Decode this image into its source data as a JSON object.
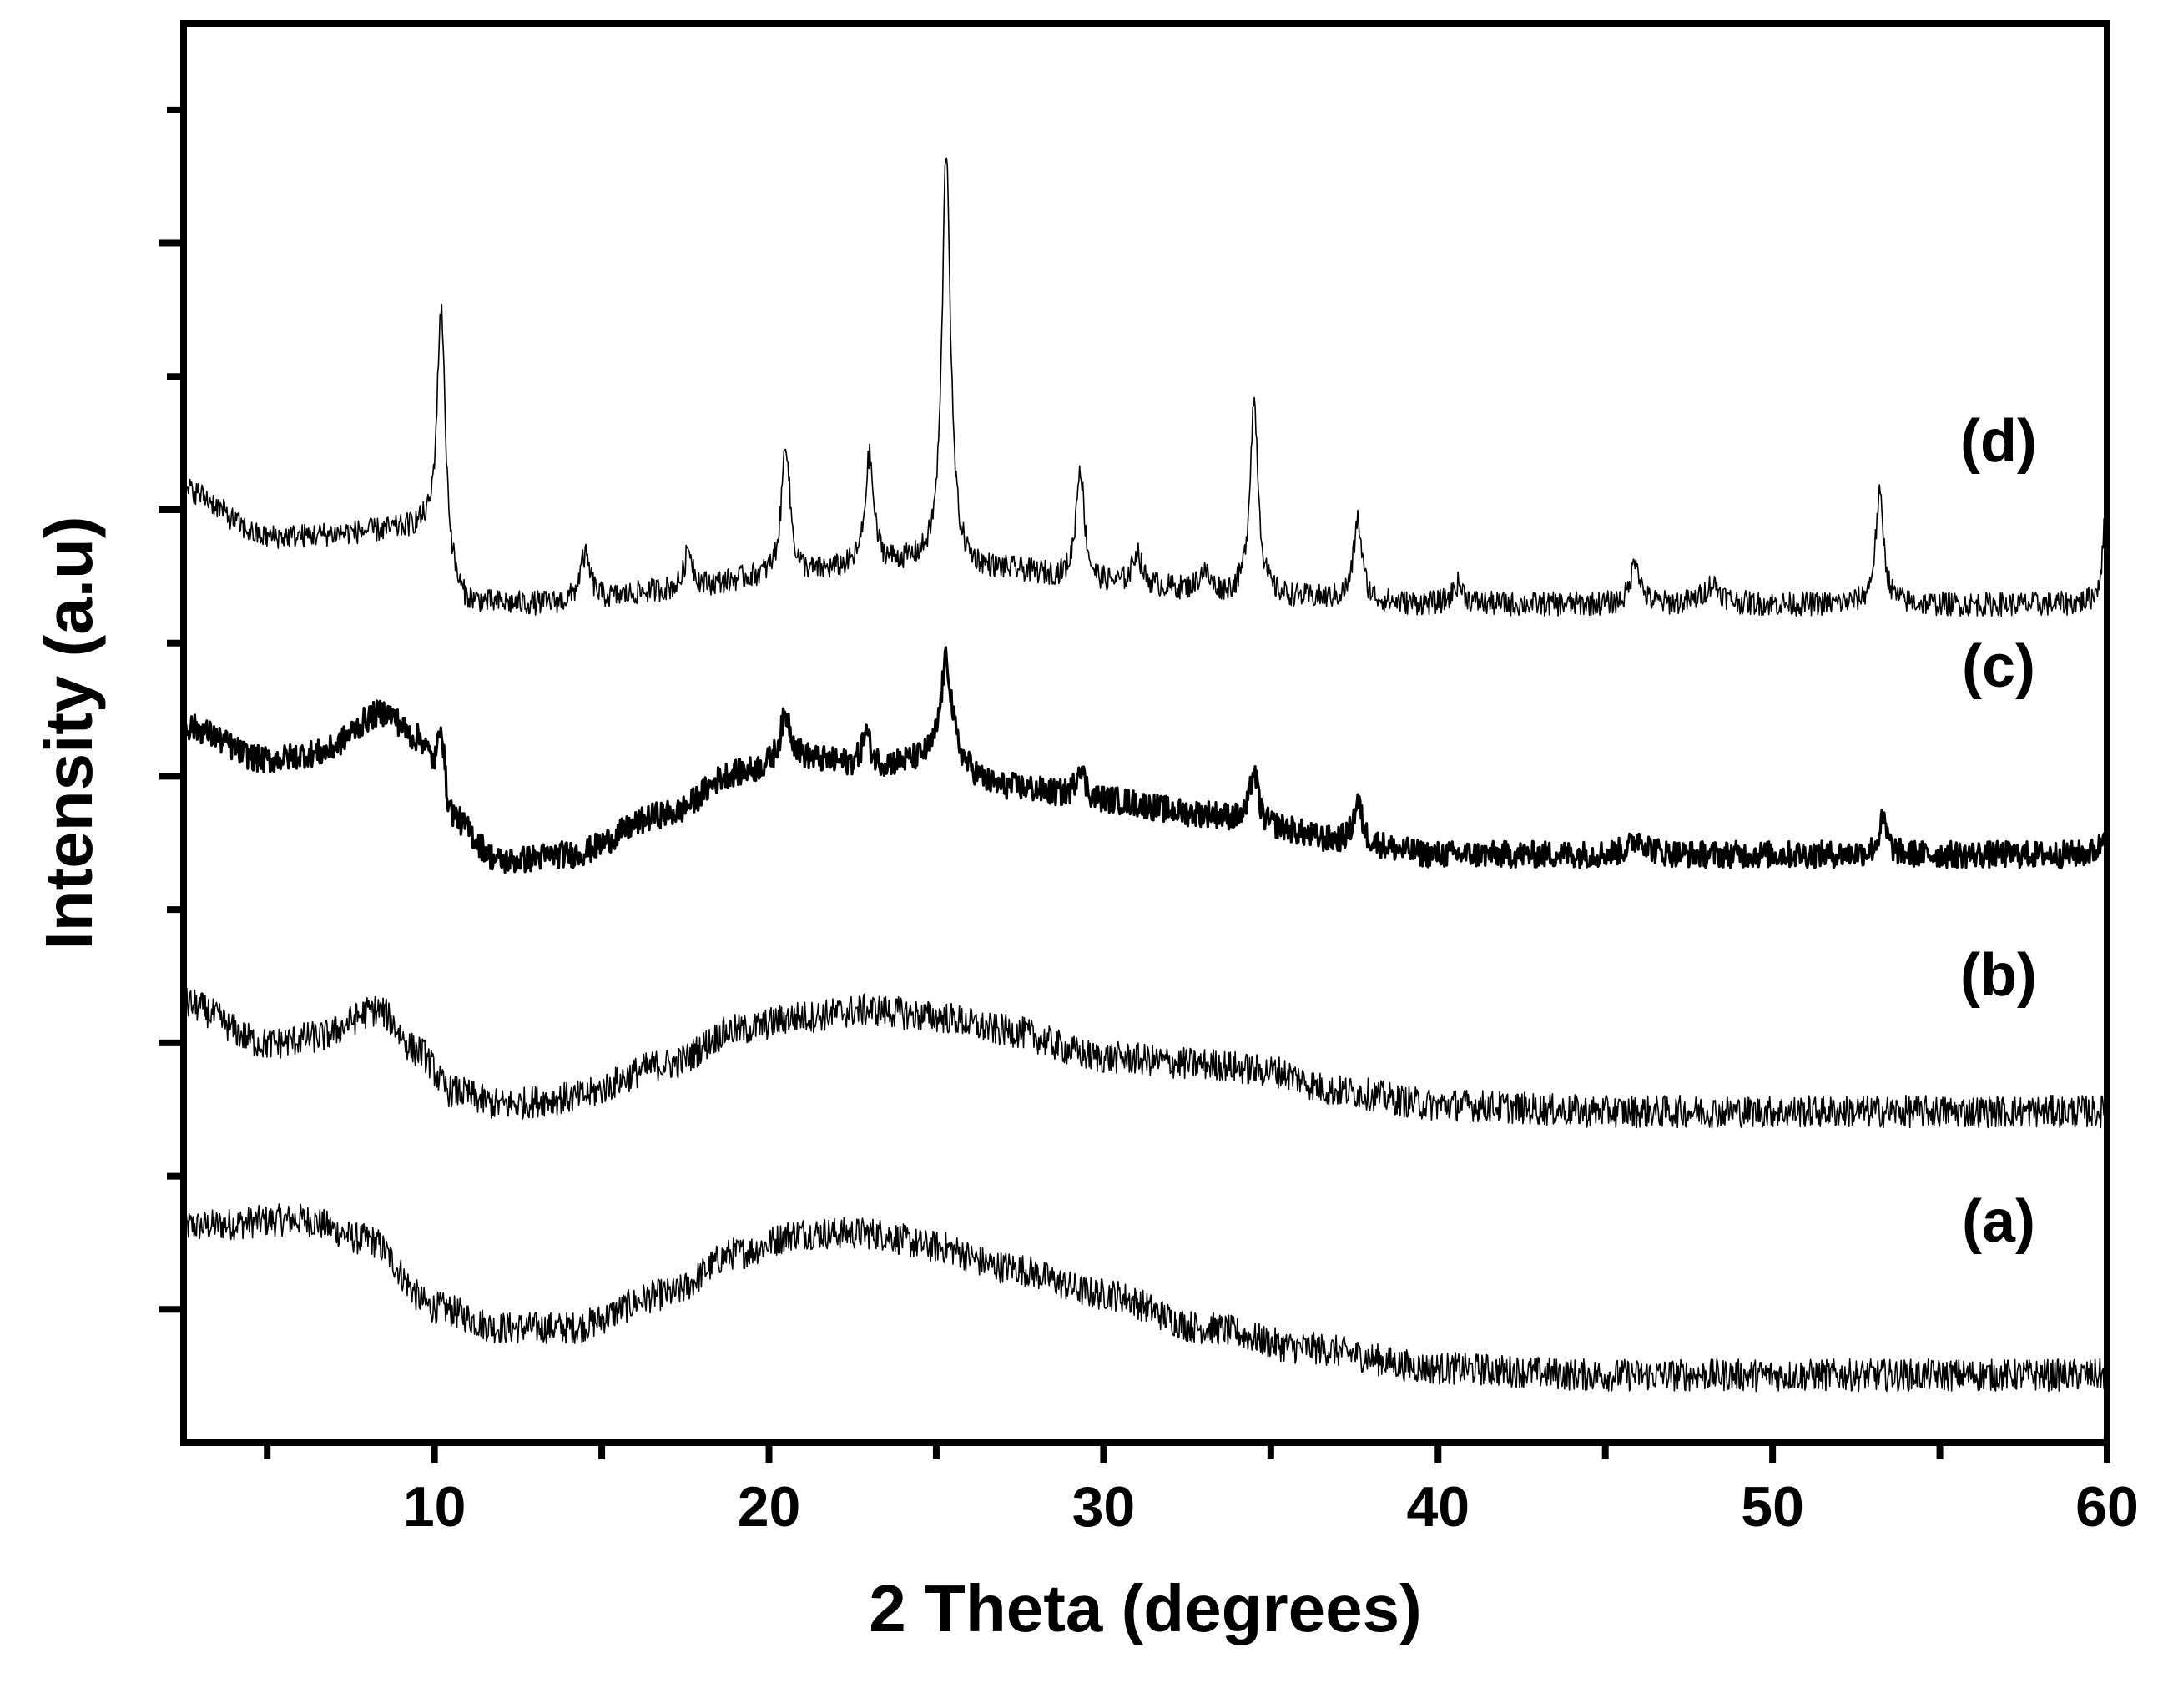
{
  "chart_data": {
    "type": "line",
    "xlabel": "2 Theta (degrees)",
    "ylabel": "Intensity (a.u)",
    "xlim": [
      2.5,
      60
    ],
    "xticks": [
      10,
      20,
      30,
      40,
      50,
      60
    ],
    "xticks_minor": [
      5,
      15,
      25,
      35,
      45,
      55
    ],
    "yticks_count": 10,
    "ylim": [
      0,
      10.5
    ],
    "show_y_tick_labels": false,
    "grid": false,
    "legend": "none",
    "line_color": "#000000",
    "series": [
      {
        "name": "(a)",
        "offset": 0.5,
        "noise": 0.12,
        "stroke_width": 1.6,
        "points": [
          [
            2.5,
            1.6
          ],
          [
            6,
            1.65
          ],
          [
            8,
            1.5
          ],
          [
            10,
            1.0
          ],
          [
            12,
            0.85
          ],
          [
            14,
            0.85
          ],
          [
            17,
            1.1
          ],
          [
            19,
            1.4
          ],
          [
            21,
            1.55
          ],
          [
            23,
            1.55
          ],
          [
            25,
            1.45
          ],
          [
            27,
            1.3
          ],
          [
            30,
            1.1
          ],
          [
            33,
            0.85
          ],
          [
            36,
            0.7
          ],
          [
            40,
            0.55
          ],
          [
            45,
            0.5
          ],
          [
            50,
            0.5
          ],
          [
            55,
            0.5
          ],
          [
            60,
            0.5
          ]
        ],
        "peaks": []
      },
      {
        "name": "(b)",
        "offset": 2.45,
        "noise": 0.12,
        "stroke_width": 1.6,
        "points": [
          [
            2.5,
            3.25
          ],
          [
            5,
            2.95
          ],
          [
            6.5,
            3.0
          ],
          [
            8.3,
            3.2
          ],
          [
            9.5,
            2.9
          ],
          [
            10.5,
            2.6
          ],
          [
            12,
            2.5
          ],
          [
            14,
            2.55
          ],
          [
            17,
            2.8
          ],
          [
            19,
            3.05
          ],
          [
            21,
            3.15
          ],
          [
            23,
            3.2
          ],
          [
            25,
            3.15
          ],
          [
            27,
            3.05
          ],
          [
            30,
            2.85
          ],
          [
            33,
            2.8
          ],
          [
            35,
            2.75
          ],
          [
            37,
            2.6
          ],
          [
            40,
            2.5
          ],
          [
            45,
            2.45
          ],
          [
            50,
            2.45
          ],
          [
            55,
            2.45
          ],
          [
            60,
            2.45
          ]
        ],
        "peaks": []
      },
      {
        "name": "(c)",
        "offset": 4.35,
        "noise": 0.1,
        "stroke_width": 3.2,
        "points": [
          [
            2.5,
            5.3
          ],
          [
            5,
            5.05
          ],
          [
            6.5,
            5.1
          ],
          [
            8.5,
            5.4
          ],
          [
            9.5,
            5.2
          ],
          [
            10.5,
            4.6
          ],
          [
            12,
            4.3
          ],
          [
            14,
            4.35
          ],
          [
            17,
            4.65
          ],
          [
            19,
            4.95
          ],
          [
            21,
            5.05
          ],
          [
            23,
            5.0
          ],
          [
            25,
            5.05
          ],
          [
            27,
            4.85
          ],
          [
            30,
            4.75
          ],
          [
            33,
            4.65
          ],
          [
            35,
            4.55
          ],
          [
            37,
            4.45
          ],
          [
            40,
            4.35
          ],
          [
            45,
            4.35
          ],
          [
            50,
            4.35
          ],
          [
            55,
            4.35
          ],
          [
            60,
            4.35
          ]
        ],
        "peaks": [
          [
            10.2,
            0.6,
            0.12
          ],
          [
            20.5,
            0.35,
            0.2
          ],
          [
            22.9,
            0.25,
            0.15
          ],
          [
            25.3,
            0.75,
            0.2
          ],
          [
            29.3,
            0.25,
            0.15
          ],
          [
            34.5,
            0.4,
            0.15
          ],
          [
            37.6,
            0.3,
            0.15
          ],
          [
            46,
            0.12,
            0.3
          ],
          [
            53.3,
            0.25,
            0.15
          ],
          [
            60,
            0.3,
            0.12
          ]
        ]
      },
      {
        "name": "(d)",
        "offset": 6.2,
        "noise": 0.09,
        "stroke_width": 1.6,
        "points": [
          [
            2.5,
            7.05
          ],
          [
            5,
            6.7
          ],
          [
            9.5,
            6.75
          ],
          [
            11,
            6.2
          ],
          [
            14,
            6.2
          ],
          [
            17,
            6.3
          ],
          [
            20,
            6.4
          ],
          [
            24,
            6.5
          ],
          [
            27,
            6.45
          ],
          [
            30,
            6.35
          ],
          [
            35,
            6.25
          ],
          [
            40,
            6.2
          ],
          [
            45,
            6.2
          ],
          [
            50,
            6.2
          ],
          [
            55,
            6.2
          ],
          [
            60,
            6.2
          ]
        ],
        "peaks": [
          [
            10.2,
            1.9,
            0.15
          ],
          [
            14.5,
            0.35,
            0.2
          ],
          [
            17.6,
            0.3,
            0.15
          ],
          [
            20.5,
            1.0,
            0.15
          ],
          [
            23.0,
            0.8,
            0.15
          ],
          [
            25.3,
            3.1,
            0.15
          ],
          [
            29.3,
            0.85,
            0.15
          ],
          [
            31.0,
            0.25,
            0.15
          ],
          [
            33,
            0.15,
            0.2
          ],
          [
            34.5,
            1.45,
            0.15
          ],
          [
            37.6,
            0.6,
            0.15
          ],
          [
            40.6,
            0.15,
            0.2
          ],
          [
            45.9,
            0.35,
            0.15
          ],
          [
            48.2,
            0.15,
            0.3
          ],
          [
            53.2,
            0.8,
            0.15
          ],
          [
            60,
            0.9,
            0.12
          ]
        ]
      }
    ]
  }
}
